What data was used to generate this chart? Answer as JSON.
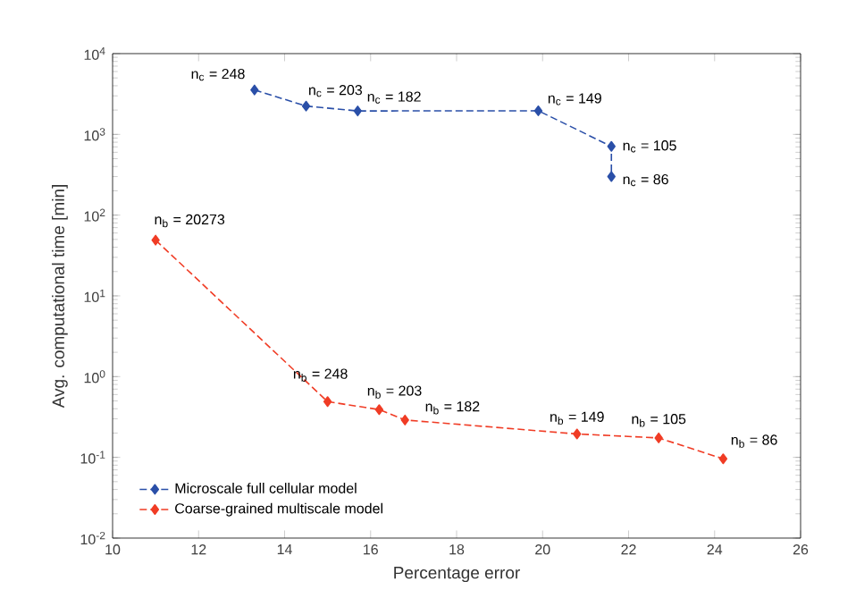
{
  "chart_data": {
    "type": "line",
    "xlabel": "Percentage error",
    "ylabel": "Avg. computational time [min]",
    "log": "y",
    "marker": "diamond",
    "line_style": "dashed",
    "grid": false,
    "legend": "bottom left",
    "xlim": [
      10,
      26
    ],
    "xticks": [
      10,
      12,
      14,
      16,
      18,
      20,
      22,
      24,
      26
    ],
    "ylim": [
      0.01,
      10000
    ],
    "yticks": [
      {
        "value": 0.01,
        "label": "10$^{-2}$"
      },
      {
        "value": 0.1,
        "label": "10$^{-1}$"
      },
      {
        "value": 1,
        "label": "10$^{0}$"
      },
      {
        "value": 10,
        "label": "10$^{1}$"
      },
      {
        "value": 100,
        "label": "10$^{2}$"
      },
      {
        "value": 1000,
        "label": "10$^{3}$"
      },
      {
        "value": 10000,
        "label": "10$^{4}$"
      }
    ],
    "series": [
      {
        "name": "Microscale full cellular model",
        "color": "#2a4fa8",
        "x": [
          13.3,
          14.5,
          15.7,
          19.9,
          21.6,
          21.6
        ],
        "values": [
          3550,
          2240,
          1950,
          1960,
          710,
          300
        ]
      },
      {
        "name": "Coarse-grained multiscale model",
        "color": "#f03c25",
        "x": [
          11.0,
          15.0,
          16.2,
          16.8,
          20.8,
          22.7,
          24.2
        ],
        "values": [
          49,
          0.49,
          0.39,
          0.29,
          0.195,
          0.174,
          0.096
        ]
      }
    ],
    "annotations": [
      {
        "text": "n$_{c}$ = 248",
        "x": 13.3,
        "y": 3550
      },
      {
        "text": "n$_{c}$ = 203",
        "x": 14.5,
        "y": 2240
      },
      {
        "text": "n$_{c}$ = 182",
        "x": 15.7,
        "y": 1950
      },
      {
        "text": "n$_{c}$ = 149",
        "x": 19.9,
        "y": 1960
      },
      {
        "text": "n$_{c}$ = 105",
        "x": 21.6,
        "y": 710
      },
      {
        "text": "n$_{c}$ = 86",
        "x": 21.6,
        "y": 300
      },
      {
        "text": "n$_{b}$ = 20273",
        "x": 11.0,
        "y": 49
      },
      {
        "text": "n$_{b}$ = 248",
        "x": 15.0,
        "y": 0.49
      },
      {
        "text": "n$_{b}$ = 203",
        "x": 16.2,
        "y": 0.39
      },
      {
        "text": "n$_{b}$ = 182",
        "x": 16.8,
        "y": 0.29
      },
      {
        "text": "n$_{b}$ = 149",
        "x": 20.8,
        "y": 0.195
      },
      {
        "text": "n$_{b}$ = 105",
        "x": 22.7,
        "y": 0.174
      },
      {
        "text": "n$_{b}$ = 86",
        "x": 24.2,
        "y": 0.096
      }
    ]
  }
}
